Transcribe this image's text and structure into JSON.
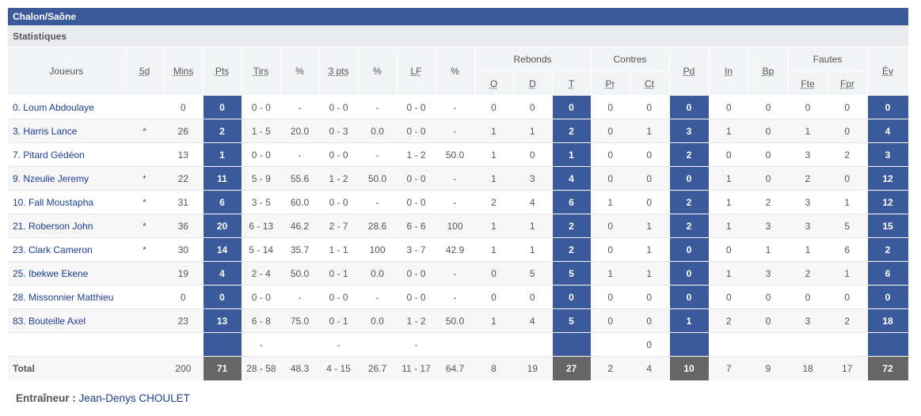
{
  "team": "Chalon/Saône",
  "section": "Statistiques",
  "headers": {
    "joueurs": "Joueurs",
    "five": "5d",
    "mins": "Mins",
    "pts": "Pts",
    "tirs": "Tirs",
    "pct1": "%",
    "three": "3 pts",
    "pct2": "%",
    "lf": "LF",
    "pct3": "%",
    "rebonds": "Rebonds",
    "reb_o": "O",
    "reb_d": "D",
    "reb_t": "T",
    "contres": "Contres",
    "c_pr": "Pr",
    "c_ct": "Ct",
    "pd": "Pd",
    "in": "In",
    "bp": "Bp",
    "fautes": "Fautes",
    "f_fte": "Fte",
    "f_fpr": "Fpr",
    "ev": "Év"
  },
  "players": [
    {
      "name": "0. Loum Abdoulaye",
      "five": "",
      "mins": "0",
      "pts": "0",
      "tirs": "0 - 0",
      "pct1": "-",
      "three": "0 - 0",
      "pct2": "-",
      "lf": "0 - 0",
      "pct3": "-",
      "o": "0",
      "d": "0",
      "t": "0",
      "pr": "0",
      "ct": "0",
      "pd": "0",
      "in": "0",
      "bp": "0",
      "fte": "0",
      "fpr": "0",
      "ev": "0"
    },
    {
      "name": "3. Harris Lance",
      "five": "*",
      "mins": "26",
      "pts": "2",
      "tirs": "1 - 5",
      "pct1": "20.0",
      "three": "0 - 3",
      "pct2": "0.0",
      "lf": "0 - 0",
      "pct3": "-",
      "o": "1",
      "d": "1",
      "t": "2",
      "pr": "0",
      "ct": "1",
      "pd": "3",
      "in": "1",
      "bp": "0",
      "fte": "1",
      "fpr": "0",
      "ev": "4"
    },
    {
      "name": "7. Pitard Gédéon",
      "five": "",
      "mins": "13",
      "pts": "1",
      "tirs": "0 - 0",
      "pct1": "-",
      "three": "0 - 0",
      "pct2": "-",
      "lf": "1 - 2",
      "pct3": "50.0",
      "o": "1",
      "d": "0",
      "t": "1",
      "pr": "0",
      "ct": "0",
      "pd": "2",
      "in": "0",
      "bp": "0",
      "fte": "3",
      "fpr": "2",
      "ev": "3"
    },
    {
      "name": "9. Nzeulie Jeremy",
      "five": "*",
      "mins": "22",
      "pts": "11",
      "tirs": "5 - 9",
      "pct1": "55.6",
      "three": "1 - 2",
      "pct2": "50.0",
      "lf": "0 - 0",
      "pct3": "-",
      "o": "1",
      "d": "3",
      "t": "4",
      "pr": "0",
      "ct": "0",
      "pd": "0",
      "in": "1",
      "bp": "0",
      "fte": "2",
      "fpr": "0",
      "ev": "12"
    },
    {
      "name": "10. Fall Moustapha",
      "five": "*",
      "mins": "31",
      "pts": "6",
      "tirs": "3 - 5",
      "pct1": "60.0",
      "three": "0 - 0",
      "pct2": "-",
      "lf": "0 - 0",
      "pct3": "-",
      "o": "2",
      "d": "4",
      "t": "6",
      "pr": "1",
      "ct": "0",
      "pd": "2",
      "in": "1",
      "bp": "2",
      "fte": "3",
      "fpr": "1",
      "ev": "12"
    },
    {
      "name": "21. Roberson John",
      "five": "*",
      "mins": "36",
      "pts": "20",
      "tirs": "6 - 13",
      "pct1": "46.2",
      "three": "2 - 7",
      "pct2": "28.6",
      "lf": "6 - 6",
      "pct3": "100",
      "o": "1",
      "d": "1",
      "t": "2",
      "pr": "0",
      "ct": "1",
      "pd": "2",
      "in": "1",
      "bp": "3",
      "fte": "3",
      "fpr": "5",
      "ev": "15"
    },
    {
      "name": "23. Clark Cameron",
      "five": "*",
      "mins": "30",
      "pts": "14",
      "tirs": "5 - 14",
      "pct1": "35.7",
      "three": "1 - 1",
      "pct2": "100",
      "lf": "3 - 7",
      "pct3": "42.9",
      "o": "1",
      "d": "1",
      "t": "2",
      "pr": "0",
      "ct": "1",
      "pd": "0",
      "in": "0",
      "bp": "1",
      "fte": "1",
      "fpr": "6",
      "ev": "2"
    },
    {
      "name": "25. Ibekwe Ekene",
      "five": "",
      "mins": "19",
      "pts": "4",
      "tirs": "2 - 4",
      "pct1": "50.0",
      "three": "0 - 1",
      "pct2": "0.0",
      "lf": "0 - 0",
      "pct3": "-",
      "o": "0",
      "d": "5",
      "t": "5",
      "pr": "1",
      "ct": "1",
      "pd": "0",
      "in": "1",
      "bp": "3",
      "fte": "2",
      "fpr": "1",
      "ev": "6"
    },
    {
      "name": "28. Missonnier Matthieu",
      "five": "",
      "mins": "0",
      "pts": "0",
      "tirs": "0 - 0",
      "pct1": "-",
      "three": "0 - 0",
      "pct2": "-",
      "lf": "0 - 0",
      "pct3": "-",
      "o": "0",
      "d": "0",
      "t": "0",
      "pr": "0",
      "ct": "0",
      "pd": "0",
      "in": "0",
      "bp": "0",
      "fte": "0",
      "fpr": "0",
      "ev": "0"
    },
    {
      "name": "83. Bouteille Axel",
      "five": "",
      "mins": "23",
      "pts": "13",
      "tirs": "6 - 8",
      "pct1": "75.0",
      "three": "0 - 1",
      "pct2": "0.0",
      "lf": "1 - 2",
      "pct3": "50.0",
      "o": "1",
      "d": "4",
      "t": "5",
      "pr": "0",
      "ct": "0",
      "pd": "1",
      "in": "2",
      "bp": "0",
      "fte": "3",
      "fpr": "2",
      "ev": "18"
    }
  ],
  "team_row": {
    "tirs": "-",
    "three": "-",
    "lf": "-",
    "ct": "0"
  },
  "total": {
    "label": "Total",
    "mins": "200",
    "pts": "71",
    "tirs": "28 - 58",
    "pct1": "48.3",
    "three": "4 - 15",
    "pct2": "26.7",
    "lf": "11 - 17",
    "pct3": "64.7",
    "o": "8",
    "d": "19",
    "t": "27",
    "pr": "2",
    "ct": "4",
    "pd": "10",
    "in": "7",
    "bp": "9",
    "fte": "18",
    "fpr": "17",
    "ev": "72"
  },
  "coach": {
    "label": "Entraîneur :",
    "name": "Jean-Denys CHOULET"
  }
}
